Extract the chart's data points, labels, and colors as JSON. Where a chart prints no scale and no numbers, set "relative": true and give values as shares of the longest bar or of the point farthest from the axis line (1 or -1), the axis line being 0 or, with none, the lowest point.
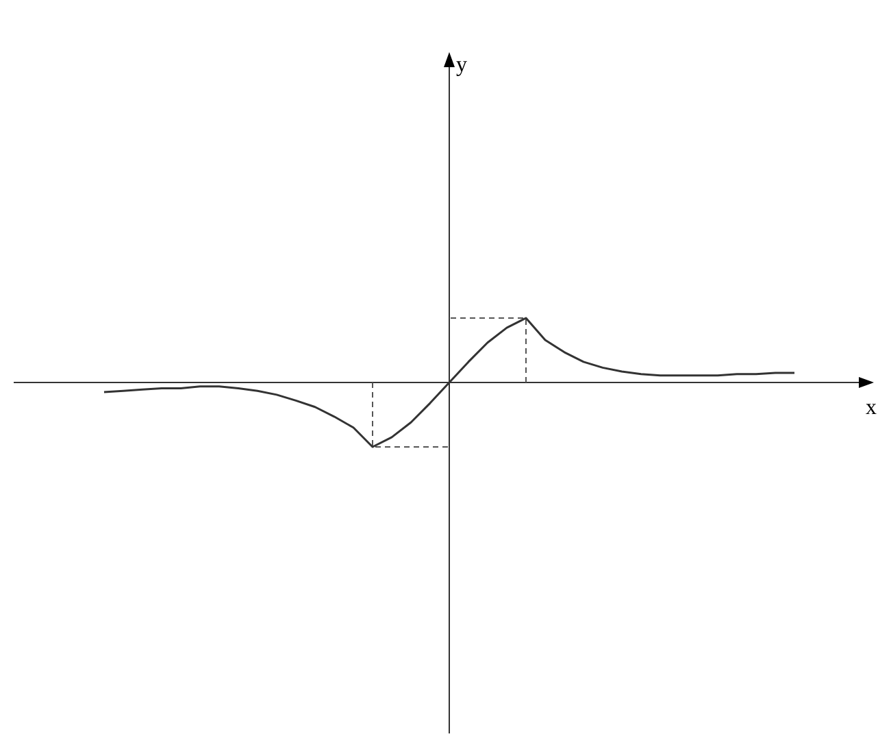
{
  "chart_data": {
    "type": "line",
    "relative": true,
    "xlabel": "x",
    "annotations": [
      "y"
    ],
    "categories": [
      null,
      null,
      null,
      null,
      null,
      null,
      null,
      null,
      null,
      null,
      null,
      null,
      null,
      null,
      null,
      null,
      null,
      null,
      null,
      null,
      null,
      null,
      null,
      null,
      null,
      null,
      null,
      null,
      null,
      null,
      null,
      null,
      null,
      null,
      null,
      null,
      null
    ],
    "series": [
      {
        "color": "#333333",
        "values": [
          -0.15,
          -0.13,
          -0.11,
          -0.09,
          -0.09,
          -0.06,
          -0.06,
          -0.09,
          -0.13,
          -0.19,
          -0.28,
          -0.38,
          -0.53,
          -0.7,
          -1,
          -0.85,
          -0.62,
          -0.32,
          0,
          0.32,
          0.62,
          0.85,
          1,
          0.66,
          0.47,
          0.32,
          0.23,
          0.17,
          0.13,
          0.11,
          0.11,
          0.11,
          0.11,
          0.13,
          0.13,
          0.15,
          0.15
        ]
      }
    ],
    "marker": "none",
    "line_style": "solid",
    "grid": false,
    "legend": false
  }
}
